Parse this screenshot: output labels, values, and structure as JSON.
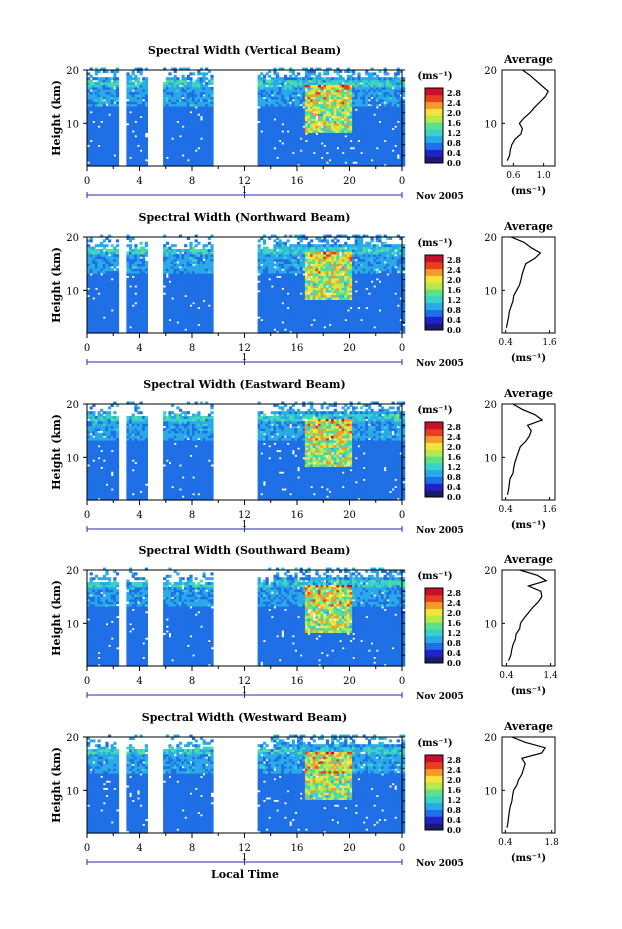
{
  "figure": {
    "bottom_label": "Local Time",
    "colors": {
      "frame": "#000000",
      "axis_blue": "#2a2aa8",
      "colorbar": [
        "#1a1a6e",
        "#2222cc",
        "#1f6fe6",
        "#2aa9e8",
        "#39d2c9",
        "#5ce08a",
        "#b6ea4a",
        "#f3e33a",
        "#f39a2a",
        "#e8401e",
        "#c8102e"
      ]
    }
  },
  "chart_data": [
    {
      "type": "heatmap",
      "title": "Spectral Width (Vertical Beam)",
      "ylabel": "Height (km)",
      "yticks": [
        "20",
        "10"
      ],
      "xticks": [
        "0",
        "4",
        "8",
        "12",
        "16",
        "20",
        "0"
      ],
      "date_marker": "1",
      "month_label": "Nov 2005",
      "ylim": [
        2,
        20
      ],
      "xlim": [
        0,
        24
      ],
      "data_gaps_hours": [
        [
          2.5,
          3.0
        ],
        [
          4.7,
          5.9
        ],
        [
          9.6,
          13.0
        ]
      ],
      "colorbar": {
        "unit": "(ms⁻¹)",
        "ticks": [
          "2.8",
          "2.4",
          "2.0",
          "1.6",
          "1.2",
          "0.8",
          "0.4",
          "0.0"
        ],
        "range": [
          0,
          3.0
        ]
      },
      "average_profile": {
        "title": "Average",
        "xlabel": "(ms⁻¹)",
        "xticks": [
          "0.6",
          "1.0"
        ],
        "xlim": [
          0.45,
          1.15
        ],
        "yticks": [
          "20",
          "10"
        ],
        "height_km": [
          3,
          4,
          5,
          6,
          7,
          8,
          9,
          10,
          11,
          12,
          13,
          14,
          15,
          16,
          17,
          18,
          19,
          20
        ],
        "values": [
          0.52,
          0.55,
          0.56,
          0.58,
          0.62,
          0.7,
          0.72,
          0.68,
          0.74,
          0.82,
          0.88,
          0.95,
          1.02,
          1.06,
          0.98,
          0.9,
          0.82,
          0.72
        ]
      }
    },
    {
      "type": "heatmap",
      "title": "Spectral Width (Northward Beam)",
      "ylabel": "Height (km)",
      "yticks": [
        "20",
        "10"
      ],
      "xticks": [
        "0",
        "4",
        "8",
        "12",
        "16",
        "20",
        "0"
      ],
      "date_marker": "1",
      "month_label": "Nov 2005",
      "ylim": [
        2,
        20
      ],
      "xlim": [
        0,
        24
      ],
      "data_gaps_hours": [
        [
          2.5,
          3.0
        ],
        [
          4.7,
          5.9
        ],
        [
          9.6,
          13.0
        ]
      ],
      "colorbar": {
        "unit": "(ms⁻¹)",
        "ticks": [
          "2.8",
          "2.4",
          "2.0",
          "1.6",
          "1.2",
          "0.8",
          "0.4",
          "0.0"
        ],
        "range": [
          0,
          3.0
        ]
      },
      "average_profile": {
        "title": "Average",
        "xlabel": "(ms⁻¹)",
        "xticks": [
          "0.4",
          "1.6"
        ],
        "xlim": [
          0.3,
          1.75
        ],
        "yticks": [
          "20",
          "10"
        ],
        "height_km": [
          3,
          4,
          5,
          6,
          7,
          8,
          9,
          10,
          11,
          12,
          13,
          14,
          15,
          16,
          17,
          18,
          19,
          20
        ],
        "values": [
          0.42,
          0.45,
          0.48,
          0.5,
          0.55,
          0.6,
          0.62,
          0.7,
          0.78,
          0.82,
          0.85,
          0.9,
          0.95,
          1.2,
          1.35,
          1.1,
          0.9,
          0.55
        ]
      }
    },
    {
      "type": "heatmap",
      "title": "Spectral Width (Eastward Beam)",
      "ylabel": "Height (km)",
      "yticks": [
        "20",
        "10"
      ],
      "xticks": [
        "0",
        "4",
        "8",
        "12",
        "16",
        "20",
        "0"
      ],
      "date_marker": "1",
      "month_label": "Nov 2005",
      "ylim": [
        2,
        20
      ],
      "xlim": [
        0,
        24
      ],
      "data_gaps_hours": [
        [
          2.5,
          3.0
        ],
        [
          4.7,
          5.9
        ],
        [
          9.6,
          13.0
        ]
      ],
      "colorbar": {
        "unit": "(ms⁻¹)",
        "ticks": [
          "2.8",
          "2.4",
          "2.0",
          "1.6",
          "1.2",
          "0.8",
          "0.4",
          "0.0"
        ],
        "range": [
          0,
          3.0
        ]
      },
      "average_profile": {
        "title": "Average",
        "xlabel": "(ms⁻¹)",
        "xticks": [
          "0.4",
          "1.6"
        ],
        "xlim": [
          0.3,
          1.75
        ],
        "yticks": [
          "20",
          "10"
        ],
        "height_km": [
          3,
          4,
          5,
          6,
          7,
          8,
          9,
          10,
          11,
          12,
          13,
          14,
          15,
          16,
          17,
          18,
          19,
          20
        ],
        "values": [
          0.45,
          0.48,
          0.5,
          0.52,
          0.6,
          0.62,
          0.65,
          0.7,
          0.75,
          0.8,
          0.95,
          1.05,
          1.1,
          1.0,
          1.4,
          1.2,
          0.85,
          0.6
        ]
      }
    },
    {
      "type": "heatmap",
      "title": "Spectral Width (Southward Beam)",
      "ylabel": "Height (km)",
      "yticks": [
        "20",
        "10"
      ],
      "xticks": [
        "0",
        "4",
        "8",
        "12",
        "16",
        "20",
        "0"
      ],
      "date_marker": "1",
      "month_label": "Nov 2005",
      "ylim": [
        2,
        20
      ],
      "xlim": [
        0,
        24
      ],
      "data_gaps_hours": [
        [
          2.5,
          3.0
        ],
        [
          4.7,
          5.9
        ],
        [
          9.6,
          13.0
        ]
      ],
      "colorbar": {
        "unit": "(ms⁻¹)",
        "ticks": [
          "2.8",
          "2.4",
          "2.0",
          "1.6",
          "1.2",
          "0.8",
          "0.4",
          "0.0"
        ],
        "range": [
          0,
          3.0
        ]
      },
      "average_profile": {
        "title": "Average",
        "xlabel": "(ms⁻¹)",
        "xticks": [
          "0.4",
          "1.4"
        ],
        "xlim": [
          0.3,
          1.5
        ],
        "yticks": [
          "20",
          "10"
        ],
        "height_km": [
          3,
          4,
          5,
          6,
          7,
          8,
          9,
          10,
          11,
          12,
          13,
          14,
          15,
          16,
          17,
          18,
          19,
          20
        ],
        "values": [
          0.45,
          0.5,
          0.52,
          0.55,
          0.6,
          0.62,
          0.7,
          0.72,
          0.8,
          0.9,
          1.0,
          1.12,
          1.2,
          1.18,
          0.9,
          1.3,
          1.1,
          0.7
        ]
      }
    },
    {
      "type": "heatmap",
      "title": "Spectral Width (Westward Beam)",
      "ylabel": "Height (km)",
      "yticks": [
        "20",
        "10"
      ],
      "xticks": [
        "0",
        "4",
        "8",
        "12",
        "16",
        "20",
        "0"
      ],
      "date_marker": "1",
      "month_label": "Nov 2005",
      "ylim": [
        2,
        20
      ],
      "xlim": [
        0,
        24
      ],
      "data_gaps_hours": [
        [
          2.5,
          3.0
        ],
        [
          4.7,
          5.9
        ],
        [
          9.6,
          13.0
        ]
      ],
      "colorbar": {
        "unit": "(ms⁻¹)",
        "ticks": [
          "2.8",
          "2.4",
          "2.0",
          "1.6",
          "1.2",
          "0.8",
          "0.4",
          "0.0"
        ],
        "range": [
          0,
          3.0
        ]
      },
      "average_profile": {
        "title": "Average",
        "xlabel": "(ms⁻¹)",
        "xticks": [
          "0.4",
          "1.8"
        ],
        "xlim": [
          0.3,
          1.9
        ],
        "yticks": [
          "20",
          "10"
        ],
        "height_km": [
          3,
          4,
          5,
          6,
          7,
          8,
          9,
          10,
          11,
          12,
          13,
          14,
          15,
          16,
          17,
          18,
          19,
          20
        ],
        "values": [
          0.45,
          0.48,
          0.5,
          0.52,
          0.55,
          0.6,
          0.62,
          0.65,
          0.75,
          0.8,
          0.9,
          0.95,
          1.0,
          0.9,
          1.5,
          1.6,
          1.0,
          0.6
        ]
      }
    }
  ]
}
